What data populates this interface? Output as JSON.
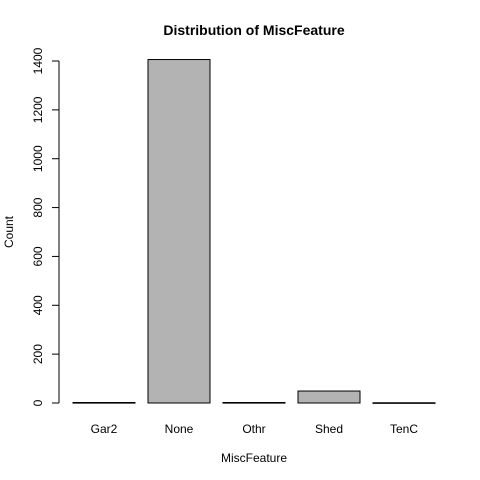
{
  "chart_data": {
    "type": "bar",
    "title": "Distribution of MiscFeature",
    "xlabel": "MiscFeature",
    "ylabel": "Count",
    "categories": [
      "Gar2",
      "None",
      "Othr",
      "Shed",
      "TenC"
    ],
    "values": [
      2,
      1406,
      2,
      49,
      1
    ],
    "ylim": [
      0,
      1400
    ],
    "yticks": [
      0,
      200,
      400,
      600,
      800,
      1000,
      1200,
      1400
    ],
    "bar_color": "#b3b3b3",
    "bar_border": "#000000",
    "grid": false,
    "legend": "none"
  }
}
